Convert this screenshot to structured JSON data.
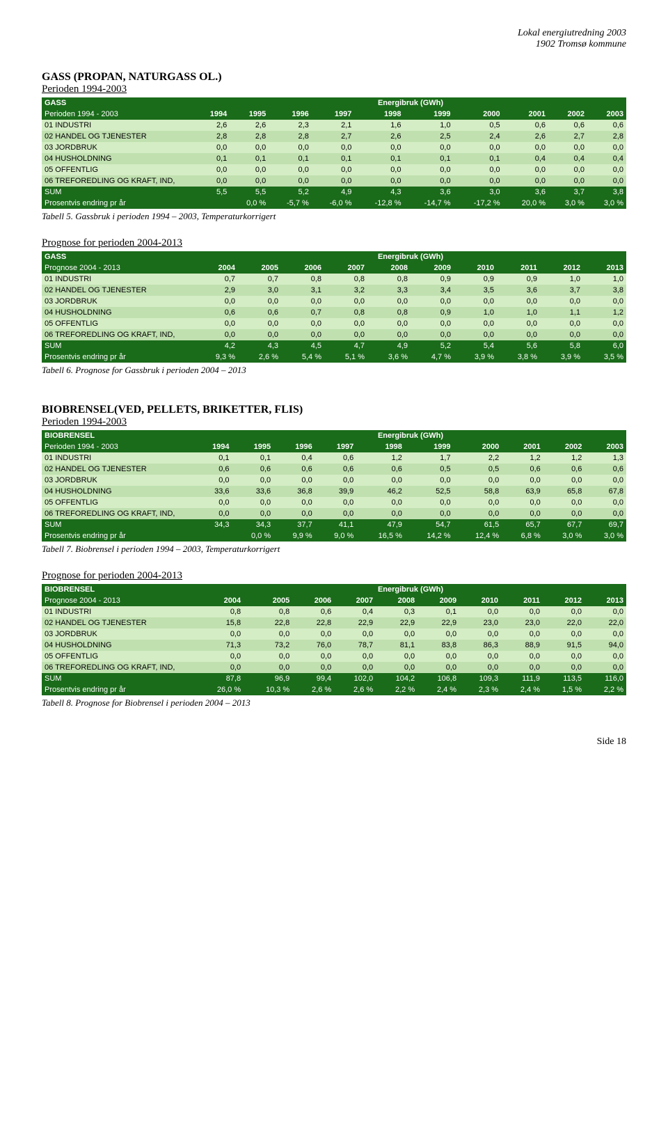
{
  "doc": {
    "header_line1": "Lokal energiutredning 2003",
    "header_line2": "1902 Tromsø kommune",
    "footer": "Side 18"
  },
  "common": {
    "row_labels": [
      "01 INDUSTRI",
      "02 HANDEL OG TJENESTER",
      "03 JORDBRUK",
      "04 HUSHOLDNING",
      "05 OFFENTLIG",
      "06 TREFOREDLING OG KRAFT, IND,"
    ],
    "sum_label": "SUM",
    "pct_label": "Prosentvis endring pr år",
    "energy_header": "Energibruk (GWh)"
  },
  "section1": {
    "title": "GASS (PROPAN, NATURGASS OL.)",
    "period": "Perioden 1994-2003",
    "table": {
      "name": "GASS",
      "subheader": "Perioden 1994 - 2003",
      "years": [
        "1994",
        "1995",
        "1996",
        "1997",
        "1998",
        "1999",
        "2000",
        "2001",
        "2002",
        "2003"
      ],
      "rows": [
        [
          "2,6",
          "2,6",
          "2,3",
          "2,1",
          "1,6",
          "1,0",
          "0,5",
          "0,6",
          "0,6",
          "0,6"
        ],
        [
          "2,8",
          "2,8",
          "2,8",
          "2,7",
          "2,6",
          "2,5",
          "2,4",
          "2,6",
          "2,7",
          "2,8"
        ],
        [
          "0,0",
          "0,0",
          "0,0",
          "0,0",
          "0,0",
          "0,0",
          "0,0",
          "0,0",
          "0,0",
          "0,0"
        ],
        [
          "0,1",
          "0,1",
          "0,1",
          "0,1",
          "0,1",
          "0,1",
          "0,1",
          "0,4",
          "0,4",
          "0,4"
        ],
        [
          "0,0",
          "0,0",
          "0,0",
          "0,0",
          "0,0",
          "0,0",
          "0,0",
          "0,0",
          "0,0",
          "0,0"
        ],
        [
          "0,0",
          "0,0",
          "0,0",
          "0,0",
          "0,0",
          "0,0",
          "0,0",
          "0,0",
          "0,0",
          "0,0"
        ]
      ],
      "sum": [
        "5,5",
        "5,5",
        "5,2",
        "4,9",
        "4,3",
        "3,6",
        "3,0",
        "3,6",
        "3,7",
        "3,8"
      ],
      "pct": [
        "",
        "0,0 %",
        "-5,7 %",
        "-6,0 %",
        "-12,8 %",
        "-14,7 %",
        "-17,2 %",
        "20,0 %",
        "3,0 %",
        "3,0 %"
      ]
    },
    "caption": "Tabell 5. Gassbruk i perioden 1994 – 2003, Temperaturkorrigert"
  },
  "section2": {
    "period": "Prognose for perioden 2004-2013",
    "table": {
      "name": "GASS",
      "subheader": "Prognose 2004 - 2013",
      "years": [
        "2004",
        "2005",
        "2006",
        "2007",
        "2008",
        "2009",
        "2010",
        "2011",
        "2012",
        "2013"
      ],
      "rows": [
        [
          "0,7",
          "0,7",
          "0,8",
          "0,8",
          "0,8",
          "0,9",
          "0,9",
          "0,9",
          "1,0",
          "1,0"
        ],
        [
          "2,9",
          "3,0",
          "3,1",
          "3,2",
          "3,3",
          "3,4",
          "3,5",
          "3,6",
          "3,7",
          "3,8"
        ],
        [
          "0,0",
          "0,0",
          "0,0",
          "0,0",
          "0,0",
          "0,0",
          "0,0",
          "0,0",
          "0,0",
          "0,0"
        ],
        [
          "0,6",
          "0,6",
          "0,7",
          "0,8",
          "0,8",
          "0,9",
          "1,0",
          "1,0",
          "1,1",
          "1,2"
        ],
        [
          "0,0",
          "0,0",
          "0,0",
          "0,0",
          "0,0",
          "0,0",
          "0,0",
          "0,0",
          "0,0",
          "0,0"
        ],
        [
          "0,0",
          "0,0",
          "0,0",
          "0,0",
          "0,0",
          "0,0",
          "0,0",
          "0,0",
          "0,0",
          "0,0"
        ]
      ],
      "sum": [
        "4,2",
        "4,3",
        "4,5",
        "4,7",
        "4,9",
        "5,2",
        "5,4",
        "5,6",
        "5,8",
        "6,0"
      ],
      "pct": [
        "9,3 %",
        "2,6 %",
        "5,4 %",
        "5,1 %",
        "3,6 %",
        "4,7 %",
        "3,9 %",
        "3,8 %",
        "3,9 %",
        "3,5 %"
      ]
    },
    "caption": "Tabell 6. Prognose for Gassbruk i perioden 2004 – 2013"
  },
  "section3": {
    "title": "BIOBRENSEL(VED, PELLETS, BRIKETTER, FLIS)",
    "period": "Perioden 1994-2003",
    "table": {
      "name": "BIOBRENSEL",
      "subheader": "Perioden 1994 - 2003",
      "years": [
        "1994",
        "1995",
        "1996",
        "1997",
        "1998",
        "1999",
        "2000",
        "2001",
        "2002",
        "2003"
      ],
      "rows": [
        [
          "0,1",
          "0,1",
          "0,4",
          "0,6",
          "1,2",
          "1,7",
          "2,2",
          "1,2",
          "1,2",
          "1,3"
        ],
        [
          "0,6",
          "0,6",
          "0,6",
          "0,6",
          "0,6",
          "0,5",
          "0,5",
          "0,6",
          "0,6",
          "0,6"
        ],
        [
          "0,0",
          "0,0",
          "0,0",
          "0,0",
          "0,0",
          "0,0",
          "0,0",
          "0,0",
          "0,0",
          "0,0"
        ],
        [
          "33,6",
          "33,6",
          "36,8",
          "39,9",
          "46,2",
          "52,5",
          "58,8",
          "63,9",
          "65,8",
          "67,8"
        ],
        [
          "0,0",
          "0,0",
          "0,0",
          "0,0",
          "0,0",
          "0,0",
          "0,0",
          "0,0",
          "0,0",
          "0,0"
        ],
        [
          "0,0",
          "0,0",
          "0,0",
          "0,0",
          "0,0",
          "0,0",
          "0,0",
          "0,0",
          "0,0",
          "0,0"
        ]
      ],
      "sum": [
        "34,3",
        "34,3",
        "37,7",
        "41,1",
        "47,9",
        "54,7",
        "61,5",
        "65,7",
        "67,7",
        "69,7"
      ],
      "pct": [
        "",
        "0,0 %",
        "9,9 %",
        "9,0 %",
        "16,5 %",
        "14,2 %",
        "12,4 %",
        "6,8 %",
        "3,0 %",
        "3,0 %"
      ]
    },
    "caption": "Tabell 7. Biobrensel i perioden 1994 – 2003, Temperaturkorrigert"
  },
  "section4": {
    "period": "Prognose for perioden 2004-2013",
    "table": {
      "name": "BIOBRENSEL",
      "subheader": "Prognose 2004 - 2013",
      "years": [
        "2004",
        "2005",
        "2006",
        "2007",
        "2008",
        "2009",
        "2010",
        "2011",
        "2012",
        "2013"
      ],
      "rows": [
        [
          "0,8",
          "0,8",
          "0,6",
          "0,4",
          "0,3",
          "0,1",
          "0,0",
          "0,0",
          "0,0",
          "0,0"
        ],
        [
          "15,8",
          "22,8",
          "22,8",
          "22,9",
          "22,9",
          "22,9",
          "23,0",
          "23,0",
          "22,0",
          "22,0"
        ],
        [
          "0,0",
          "0,0",
          "0,0",
          "0,0",
          "0,0",
          "0,0",
          "0,0",
          "0,0",
          "0,0",
          "0,0"
        ],
        [
          "71,3",
          "73,2",
          "76,0",
          "78,7",
          "81,1",
          "83,8",
          "86,3",
          "88,9",
          "91,5",
          "94,0"
        ],
        [
          "0,0",
          "0,0",
          "0,0",
          "0,0",
          "0,0",
          "0,0",
          "0,0",
          "0,0",
          "0,0",
          "0,0"
        ],
        [
          "0,0",
          "0,0",
          "0,0",
          "0,0",
          "0,0",
          "0,0",
          "0,0",
          "0,0",
          "0,0",
          "0,0"
        ]
      ],
      "sum": [
        "87,8",
        "96,9",
        "99,4",
        "102,0",
        "104,2",
        "106,8",
        "109,3",
        "111,9",
        "113,5",
        "116,0"
      ],
      "pct": [
        "26,0 %",
        "10,3 %",
        "2,6 %",
        "2,6 %",
        "2,2 %",
        "2,4 %",
        "2,3 %",
        "2,4 %",
        "1,5 %",
        "2,2 %"
      ]
    },
    "caption": "Tabell 8. Prognose for Biobrensel i perioden 2004 – 2013"
  }
}
